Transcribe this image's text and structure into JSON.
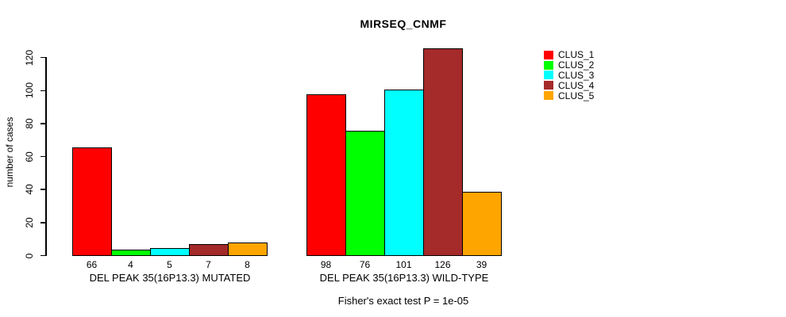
{
  "chart_data": {
    "type": "bar",
    "title": "MIRSEQ_CNMF",
    "ylabel": "number of cases",
    "xlabel": "",
    "ylim": [
      0,
      130
    ],
    "yticks": [
      0,
      20,
      40,
      60,
      80,
      100,
      120
    ],
    "grid": false,
    "legend_position": "right",
    "categories": [
      "DEL PEAK 35(16P13.3) MUTATED",
      "DEL PEAK 35(16P13.3) WILD-TYPE"
    ],
    "series": [
      {
        "name": "CLUS_1",
        "color": "#FF0000",
        "values": [
          66,
          98
        ]
      },
      {
        "name": "CLUS_2",
        "color": "#00FF00",
        "values": [
          4,
          76
        ]
      },
      {
        "name": "CLUS_3",
        "color": "#00FFFF",
        "values": [
          5,
          101
        ]
      },
      {
        "name": "CLUS_4",
        "color": "#A52A2A",
        "values": [
          7,
          126
        ]
      },
      {
        "name": "CLUS_5",
        "color": "#FFA500",
        "values": [
          8,
          39
        ]
      }
    ],
    "annotation": "Fisher's exact test P = 1e-05"
  }
}
